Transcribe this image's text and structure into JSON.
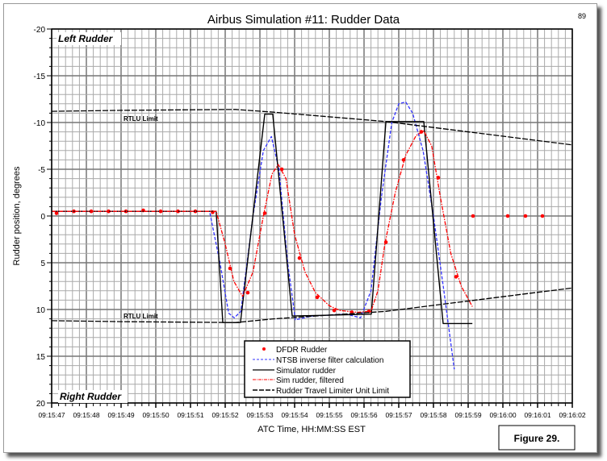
{
  "page_number": "89",
  "figure_label": "Figure 29.",
  "chart_data": {
    "type": "line",
    "title": "Airbus Simulation #11: Rudder Data",
    "xlabel": "ATC Time, HH:MM:SS EST",
    "ylabel": "Rudder position, degrees",
    "x_tick_labels": [
      "09:15:47",
      "09:15:48",
      "09:15:49",
      "09:15:50",
      "09:15:51",
      "09:15:52",
      "09:15:53",
      "09:15:54",
      "09:15:55",
      "09:15:56",
      "09:15:57",
      "09:15:58",
      "09:15:59",
      "09:16:00",
      "09:16:01",
      "09:16:02"
    ],
    "x_unit_note": "x values are seconds after 09:15:47",
    "xlim": [
      0,
      15
    ],
    "ylim": [
      -20,
      20
    ],
    "y_inverted": true,
    "y_ticks": [
      "-20",
      "-15",
      "-10",
      "-5",
      "0",
      "5",
      "10",
      "15",
      "20"
    ],
    "grid": true,
    "annotations": {
      "top": "Left Rudder",
      "bottom": "Right Rudder",
      "rtlu_upper": "RTLU Limit",
      "rtlu_lower": "RTLU Limit"
    },
    "legend_placement": "bottom-center",
    "series": [
      {
        "name": "DFDR Rudder",
        "style": "points",
        "color": "#ff0000",
        "x": [
          0.14,
          0.64,
          1.14,
          1.64,
          2.14,
          2.64,
          3.14,
          3.64,
          4.14,
          4.64,
          5.14,
          5.65,
          6.14,
          6.63,
          7.14,
          7.65,
          8.14,
          8.65,
          9.14,
          9.63,
          10.14,
          10.65,
          11.14,
          11.65,
          12.14,
          13.14,
          13.65,
          14.14
        ],
        "y": [
          -0.3,
          -0.5,
          -0.5,
          -0.5,
          -0.5,
          -0.6,
          -0.5,
          -0.5,
          -0.5,
          -0.4,
          5.6,
          8.2,
          -0.3,
          -5.0,
          4.5,
          8.7,
          10.1,
          10.3,
          10.2,
          2.8,
          -6.0,
          -9.0,
          -4.1,
          6.5,
          0,
          0,
          0,
          0
        ]
      },
      {
        "name": "NTSB inverse filter calculation",
        "style": "dashed",
        "color": "#3333ff",
        "x": [
          0,
          4.55,
          4.85,
          5.1,
          5.26,
          5.45,
          5.8,
          6.1,
          6.33,
          6.55,
          6.8,
          7.02,
          7.5,
          8.5,
          8.9,
          9.2,
          9.5,
          9.8,
          10.0,
          10.2,
          10.4,
          10.7,
          11.0,
          11.3,
          11.6
        ],
        "y": [
          -0.5,
          -0.5,
          5,
          10.4,
          10.9,
          10.2,
          0,
          -7,
          -8.5,
          -5,
          5,
          11.1,
          10.7,
          10.5,
          10.9,
          8,
          -2,
          -10,
          -12,
          -12.2,
          -11,
          -7,
          0,
          8,
          16.4
        ]
      },
      {
        "name": "Simulator rudder",
        "style": "solid",
        "color": "#000000",
        "x": [
          0,
          4.74,
          4.93,
          5.44,
          6.14,
          6.37,
          6.93,
          9.21,
          9.63,
          10.72,
          11.28,
          12.12
        ],
        "y": [
          -0.5,
          -0.5,
          11.4,
          11.4,
          -10.9,
          -10.9,
          10.7,
          10.5,
          -10.1,
          -10.1,
          11.5,
          11.5
        ]
      },
      {
        "name": "Sim rudder, filtered",
        "style": "dash-dot",
        "color": "#ff0000",
        "x": [
          0,
          4.74,
          5.0,
          5.25,
          5.5,
          5.8,
          6.1,
          6.35,
          6.53,
          6.75,
          7.0,
          7.3,
          7.6,
          8.0,
          8.3,
          8.8,
          9.2,
          9.4,
          9.6,
          9.9,
          10.2,
          10.5,
          10.72,
          10.95,
          11.2,
          11.5,
          11.8,
          12.12
        ],
        "y": [
          -0.5,
          -0.5,
          3,
          7,
          8.6,
          6,
          0,
          -4.5,
          -5.5,
          -4,
          2,
          6,
          8.2,
          9.6,
          10.1,
          10.3,
          10.2,
          8,
          3,
          -2.5,
          -6.5,
          -8.6,
          -9.1,
          -7.5,
          -2,
          4,
          7.5,
          9.7
        ]
      },
      {
        "name": "Rudder Travel Limiter Unit Limit",
        "style": "long-dash",
        "color": "#000000",
        "segments": [
          {
            "x": [
              0,
              2.0,
              5.3,
              6.4,
              9.63,
              15
            ],
            "y": [
              -11.2,
              -11.3,
              -11.4,
              -11.1,
              -10.1,
              -7.6
            ]
          },
          {
            "x": [
              0,
              2.0,
              5.3,
              6.4,
              9.63,
              15
            ],
            "y": [
              11.2,
              11.3,
              11.4,
              11.0,
              10.2,
              7.7
            ]
          }
        ]
      }
    ]
  }
}
